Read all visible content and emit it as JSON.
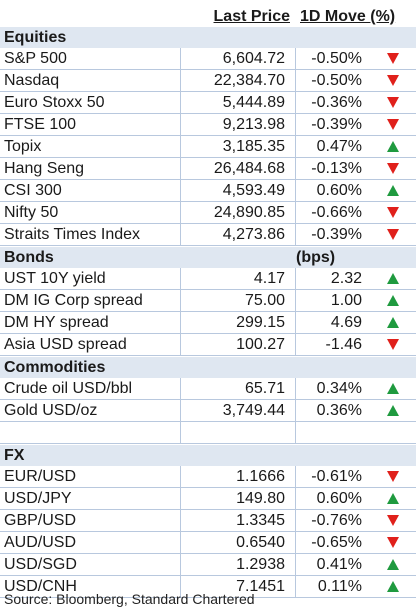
{
  "header": {
    "col_price": "Last Price",
    "col_move": "1D Move (%)"
  },
  "colors": {
    "up": "#1f9a3f",
    "down": "#e0201b",
    "section_bg": "#dfe7f1",
    "grid": "#b8c8de"
  },
  "sections": {
    "equities": {
      "title": "Equities",
      "rows": [
        {
          "name": "S&P 500",
          "price": "6,604.72",
          "move": "-0.50%",
          "dir": "down"
        },
        {
          "name": "Nasdaq",
          "price": "22,384.70",
          "move": "-0.50%",
          "dir": "down"
        },
        {
          "name": "Euro Stoxx 50",
          "price": "5,444.89",
          "move": "-0.36%",
          "dir": "down"
        },
        {
          "name": "FTSE 100",
          "price": "9,213.98",
          "move": "-0.39%",
          "dir": "down"
        },
        {
          "name": "Topix",
          "price": "3,185.35",
          "move": "0.47%",
          "dir": "up"
        },
        {
          "name": "Hang Seng",
          "price": "26,484.68",
          "move": "-0.13%",
          "dir": "down"
        },
        {
          "name": "CSI 300",
          "price": "4,593.49",
          "move": "0.60%",
          "dir": "up"
        },
        {
          "name": "Nifty 50",
          "price": "24,890.85",
          "move": "-0.66%",
          "dir": "down"
        },
        {
          "name": "Straits Times Index",
          "price": "4,273.86",
          "move": "-0.39%",
          "dir": "down"
        }
      ]
    },
    "bonds": {
      "title": "Bonds",
      "unit": "(bps)",
      "rows": [
        {
          "name": "UST 10Y yield",
          "price": "4.17",
          "move": "2.32",
          "dir": "up"
        },
        {
          "name": "DM IG Corp spread",
          "price": "75.00",
          "move": "1.00",
          "dir": "up"
        },
        {
          "name": "DM HY spread",
          "price": "299.15",
          "move": "4.69",
          "dir": "up"
        },
        {
          "name": "Asia USD spread",
          "price": "100.27",
          "move": "-1.46",
          "dir": "down"
        }
      ]
    },
    "commodities": {
      "title": "Commodities",
      "rows": [
        {
          "name": "Crude oil USD/bbl",
          "price": "65.71",
          "move": "0.34%",
          "dir": "up"
        },
        {
          "name": "Gold USD/oz",
          "price": "3,749.44",
          "move": "0.36%",
          "dir": "up"
        }
      ]
    },
    "fx": {
      "title": "FX",
      "rows": [
        {
          "name": "EUR/USD",
          "price": "1.1666",
          "move": "-0.61%",
          "dir": "down"
        },
        {
          "name": "USD/JPY",
          "price": "149.80",
          "move": "0.60%",
          "dir": "up"
        },
        {
          "name": "GBP/USD",
          "price": "1.3345",
          "move": "-0.76%",
          "dir": "down"
        },
        {
          "name": "AUD/USD",
          "price": "0.6540",
          "move": "-0.65%",
          "dir": "down"
        },
        {
          "name": "USD/SGD",
          "price": "1.2938",
          "move": "0.41%",
          "dir": "up"
        },
        {
          "name": "USD/CNH",
          "price": "7.1451",
          "move": "0.11%",
          "dir": "up"
        }
      ]
    }
  },
  "source": "Source: Bloomberg, Standard Chartered"
}
